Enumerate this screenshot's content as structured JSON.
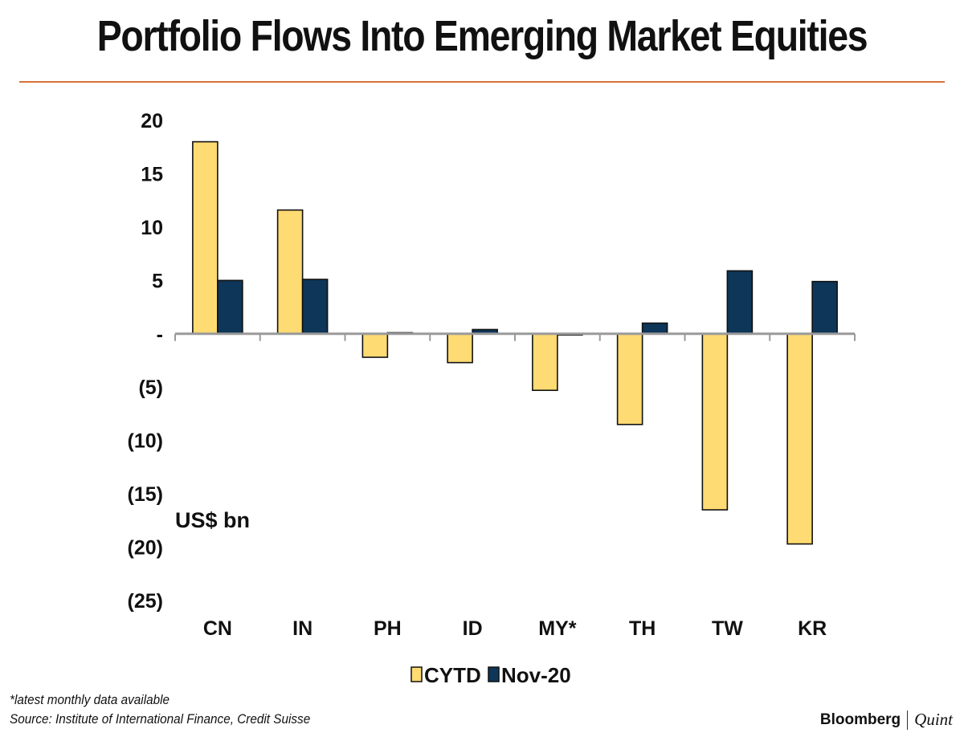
{
  "header": {
    "title": "Portfolio Flows Into Emerging Market Equities"
  },
  "chart_data": {
    "type": "bar",
    "title": "Portfolio Flows Into Emerging Market Equities",
    "categories": [
      "CN",
      "IN",
      "PH",
      "ID",
      "MY*",
      "TH",
      "TW",
      "KR"
    ],
    "series": [
      {
        "name": "CYTD",
        "color": "#ffdb73",
        "values": [
          18.0,
          11.6,
          -2.2,
          -2.7,
          -5.3,
          -8.5,
          -16.5,
          -19.7
        ]
      },
      {
        "name": "Nov-20",
        "color": "#0d3658",
        "values": [
          5.0,
          5.1,
          0.1,
          0.4,
          -0.1,
          1.0,
          5.9,
          4.9
        ]
      }
    ],
    "ylim": [
      -25,
      20
    ],
    "yticks": [
      20,
      15,
      10,
      5,
      0,
      -5,
      -10,
      -15,
      -20,
      -25
    ],
    "ytick_labels": [
      "20",
      "15",
      "10",
      "5",
      "-",
      "(5)",
      "(10)",
      "(15)",
      "(20)",
      "(25)"
    ],
    "ylabel": "US$ bn",
    "xlabel": "",
    "legend": "bottom-center",
    "grid": false
  },
  "footer": {
    "note": "*latest monthly data available",
    "source": "Source: Institute of International Finance, Credit Suisse",
    "brand_primary": "Bloomberg",
    "brand_secondary": "Quint"
  }
}
